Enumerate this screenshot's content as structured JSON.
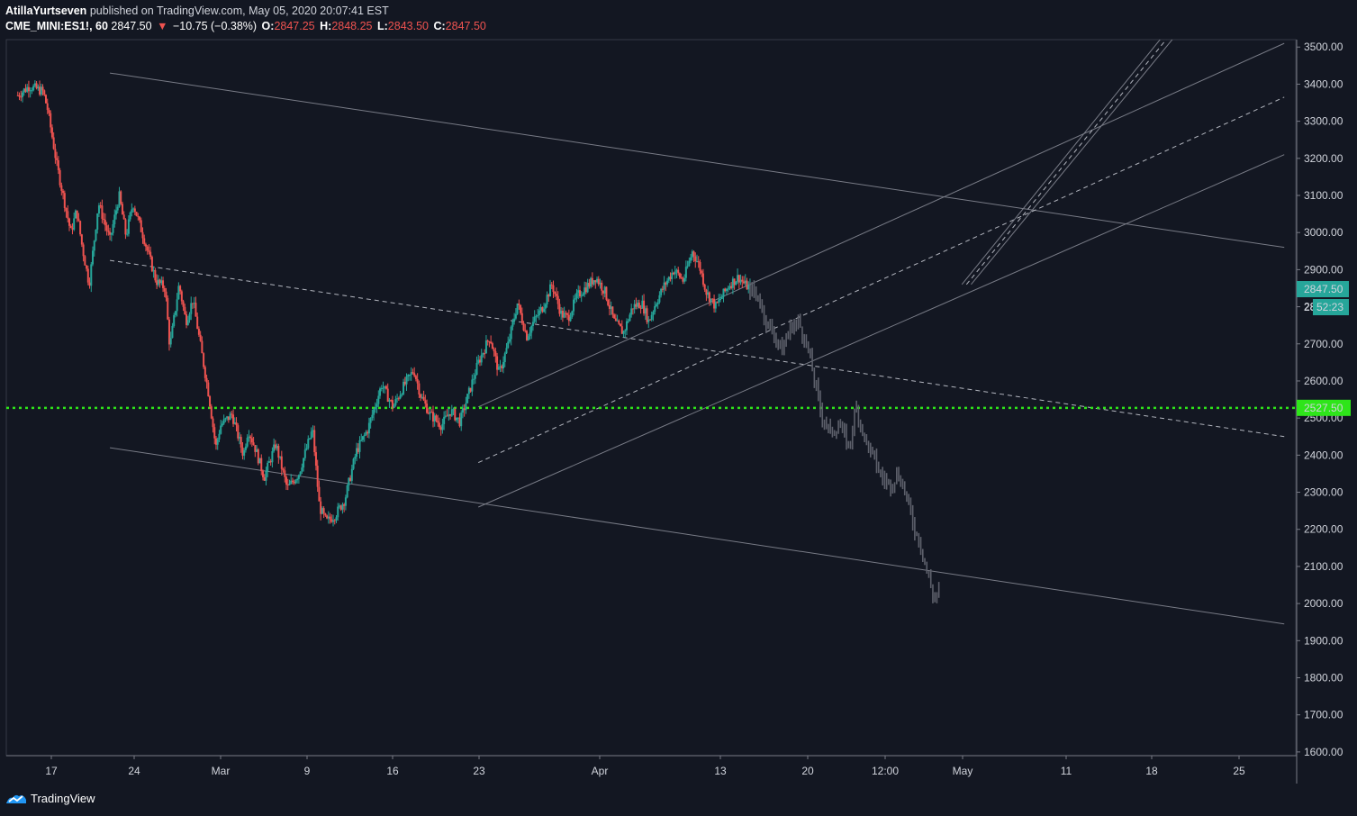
{
  "header": {
    "author": "AtillaYurtseven",
    "published_text": "published on TradingView.com, May 05, 2020 20:07:41 EST",
    "symbol": "CME_MINI:ES1!, 60",
    "last": "2847.50",
    "change_arrow": "▼",
    "change": "−10.75 (−0.38%)",
    "o_label": "O:",
    "o_value": "2847.25",
    "h_label": "H:",
    "h_value": "2848.25",
    "l_label": "L:",
    "l_value": "2843.50",
    "c_label": "C:",
    "c_value": "2847.50"
  },
  "footer": {
    "brand": "TradingView",
    "logo_icon": "tradingview-logo-icon"
  },
  "colors": {
    "background": "#131722",
    "up": "#26a69a",
    "down": "#ef5350",
    "projection": "#5d606b",
    "green_level": "#2ee51a",
    "last_price_bg": "#26a69a",
    "axis_text": "#d1d4dc"
  },
  "chart_data": {
    "type": "candlestick",
    "symbol": "CME_MINI:ES1!",
    "interval": "60",
    "ylim": [
      1590,
      3520
    ],
    "y_ticks": [
      "3500.00",
      "3400.00",
      "3300.00",
      "3200.00",
      "3100.00",
      "3000.00",
      "2900.00",
      "2800.00",
      "2700.00",
      "2600.00",
      "2500.00",
      "2400.00",
      "2300.00",
      "2200.00",
      "2100.00",
      "2000.00",
      "1900.00",
      "1800.00",
      "1700.00",
      "1600.00"
    ],
    "x_ticks": [
      "17",
      "24",
      "Mar",
      "9",
      "16",
      "23",
      "Apr",
      "13",
      "20",
      "12:00",
      "May",
      "11",
      "18",
      "25"
    ],
    "grid": false,
    "last_price_label": "2847.50",
    "countdown_label": "52:23",
    "countdown_prefix": "28",
    "horizontal_level": {
      "value": 2527.5,
      "label": "2527.50",
      "style": "dotted"
    },
    "price_path": [
      [
        0,
        3370
      ],
      [
        0.05,
        3395
      ],
      [
        0.11,
        3380
      ],
      [
        0.13,
        3330
      ],
      [
        0.17,
        3180
      ],
      [
        0.23,
        3000
      ],
      [
        0.255,
        3060
      ],
      [
        0.28,
        2960
      ],
      [
        0.31,
        2860
      ],
      [
        0.35,
        3080
      ],
      [
        0.4,
        2980
      ],
      [
        0.44,
        3100
      ],
      [
        0.47,
        2990
      ],
      [
        0.5,
        3080
      ],
      [
        0.55,
        2980
      ],
      [
        0.6,
        2870
      ],
      [
        0.64,
        2850
      ],
      [
        0.66,
        2690
      ],
      [
        0.7,
        2860
      ],
      [
        0.73,
        2760
      ],
      [
        0.76,
        2820
      ],
      [
        0.8,
        2670
      ],
      [
        0.83,
        2560
      ],
      [
        0.86,
        2420
      ],
      [
        0.88,
        2480
      ],
      [
        0.93,
        2510
      ],
      [
        0.98,
        2400
      ],
      [
        1.0,
        2470
      ],
      [
        1.03,
        2420
      ],
      [
        1.07,
        2340
      ],
      [
        1.12,
        2430
      ],
      [
        1.17,
        2310
      ],
      [
        1.22,
        2350
      ],
      [
        1.28,
        2470
      ],
      [
        1.31,
        2260
      ],
      [
        1.34,
        2220
      ],
      [
        1.38,
        2240
      ],
      [
        1.42,
        2280
      ],
      [
        1.47,
        2410
      ],
      [
        1.52,
        2470
      ],
      [
        1.58,
        2590
      ],
      [
        1.63,
        2530
      ],
      [
        1.67,
        2580
      ],
      [
        1.72,
        2630
      ],
      [
        1.75,
        2560
      ],
      [
        1.79,
        2510
      ],
      [
        1.84,
        2480
      ],
      [
        1.88,
        2520
      ],
      [
        1.92,
        2490
      ],
      [
        1.96,
        2570
      ],
      [
        2.0,
        2650
      ],
      [
        2.05,
        2720
      ],
      [
        2.09,
        2620
      ],
      [
        2.13,
        2700
      ],
      [
        2.17,
        2810
      ],
      [
        2.21,
        2720
      ],
      [
        2.24,
        2760
      ],
      [
        2.28,
        2800
      ],
      [
        2.32,
        2860
      ],
      [
        2.36,
        2780
      ],
      [
        2.39,
        2770
      ],
      [
        2.43,
        2830
      ],
      [
        2.48,
        2860
      ],
      [
        2.51,
        2880
      ],
      [
        2.55,
        2840
      ],
      [
        2.59,
        2760
      ],
      [
        2.63,
        2730
      ],
      [
        2.67,
        2800
      ],
      [
        2.71,
        2810
      ],
      [
        2.74,
        2760
      ],
      [
        2.77,
        2810
      ],
      [
        2.81,
        2860
      ],
      [
        2.85,
        2900
      ],
      [
        2.89,
        2870
      ],
      [
        2.93,
        2950
      ],
      [
        2.96,
        2910
      ],
      [
        2.99,
        2840
      ],
      [
        3.03,
        2800
      ],
      [
        3.06,
        2830
      ],
      [
        3.09,
        2860
      ],
      [
        3.13,
        2880
      ],
      [
        3.16,
        2858
      ],
      [
        3.18,
        2850
      ]
    ],
    "projection_path": [
      [
        3.18,
        2850
      ],
      [
        3.22,
        2820
      ],
      [
        3.25,
        2760
      ],
      [
        3.29,
        2720
      ],
      [
        3.32,
        2680
      ],
      [
        3.35,
        2740
      ],
      [
        3.39,
        2760
      ],
      [
        3.43,
        2690
      ],
      [
        3.46,
        2600
      ],
      [
        3.49,
        2510
      ],
      [
        3.53,
        2460
      ],
      [
        3.57,
        2480
      ],
      [
        3.61,
        2420
      ],
      [
        3.64,
        2530
      ],
      [
        3.68,
        2440
      ],
      [
        3.72,
        2390
      ],
      [
        3.75,
        2340
      ],
      [
        3.79,
        2320
      ],
      [
        3.82,
        2350
      ],
      [
        3.85,
        2310
      ],
      [
        3.89,
        2210
      ],
      [
        3.92,
        2160
      ],
      [
        3.95,
        2080
      ],
      [
        3.98,
        2010
      ],
      [
        4.0,
        2040
      ]
    ],
    "drawings": [
      {
        "kind": "trend",
        "style": "solid",
        "points": [
          [
            0.4,
            3430
          ],
          [
            5.5,
            2960
          ]
        ]
      },
      {
        "kind": "trend",
        "style": "dashed",
        "points": [
          [
            0.4,
            2925
          ],
          [
            5.5,
            2450
          ]
        ]
      },
      {
        "kind": "trend",
        "style": "solid",
        "points": [
          [
            0.4,
            2420
          ],
          [
            5.5,
            1945
          ]
        ]
      },
      {
        "kind": "trend",
        "style": "solid",
        "points": [
          [
            2.0,
            2530
          ],
          [
            5.5,
            3510
          ]
        ]
      },
      {
        "kind": "trend",
        "style": "dashed",
        "points": [
          [
            2.0,
            2380
          ],
          [
            5.5,
            3365
          ]
        ]
      },
      {
        "kind": "trend",
        "style": "solid",
        "points": [
          [
            2.0,
            2260
          ],
          [
            5.5,
            3210
          ]
        ]
      },
      {
        "kind": "trend",
        "style": "solid",
        "points": [
          [
            4.1,
            2860
          ],
          [
            4.98,
            3535
          ]
        ]
      },
      {
        "kind": "trend",
        "style": "dashed",
        "points": [
          [
            4.12,
            2860
          ],
          [
            5.0,
            3530
          ]
        ]
      },
      {
        "kind": "trend",
        "style": "solid",
        "points": [
          [
            4.14,
            2860
          ],
          [
            5.02,
            3525
          ]
        ]
      }
    ]
  }
}
